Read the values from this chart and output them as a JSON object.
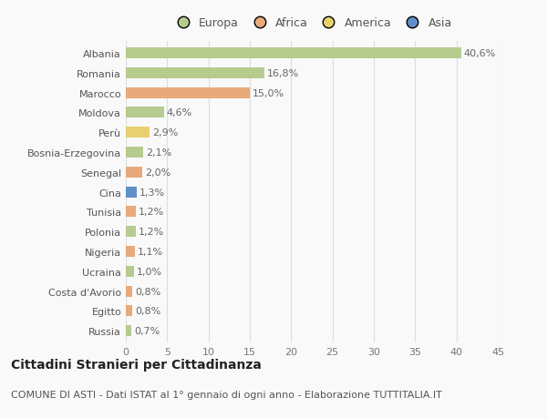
{
  "countries": [
    "Albania",
    "Romania",
    "Marocco",
    "Moldova",
    "Perù",
    "Bosnia-Erzegovina",
    "Senegal",
    "Cina",
    "Tunisia",
    "Polonia",
    "Nigeria",
    "Ucraina",
    "Costa d'Avorio",
    "Egitto",
    "Russia"
  ],
  "values": [
    40.6,
    16.8,
    15.0,
    4.6,
    2.9,
    2.1,
    2.0,
    1.3,
    1.2,
    1.2,
    1.1,
    1.0,
    0.8,
    0.8,
    0.7
  ],
  "labels": [
    "40,6%",
    "16,8%",
    "15,0%",
    "4,6%",
    "2,9%",
    "2,1%",
    "2,0%",
    "1,3%",
    "1,2%",
    "1,2%",
    "1,1%",
    "1,0%",
    "0,8%",
    "0,8%",
    "0,7%"
  ],
  "continents": [
    "Europa",
    "Europa",
    "Africa",
    "Europa",
    "America",
    "Europa",
    "Africa",
    "Asia",
    "Africa",
    "Europa",
    "Africa",
    "Europa",
    "Africa",
    "Africa",
    "Europa"
  ],
  "colors": {
    "Europa": "#b5cc8e",
    "Africa": "#e8aa7a",
    "America": "#e8d070",
    "Asia": "#6090c8"
  },
  "title": "Cittadini Stranieri per Cittadinanza",
  "subtitle": "COMUNE DI ASTI - Dati ISTAT al 1° gennaio di ogni anno - Elaborazione TUTTITALIA.IT",
  "xlim": [
    0,
    45
  ],
  "xticks": [
    0,
    5,
    10,
    15,
    20,
    25,
    30,
    35,
    40,
    45
  ],
  "bg_color": "#f9f9f9",
  "grid_color": "#dddddd",
  "bar_height": 0.55,
  "title_fontsize": 10,
  "subtitle_fontsize": 8,
  "label_fontsize": 8,
  "tick_fontsize": 8,
  "legend_fontsize": 9
}
